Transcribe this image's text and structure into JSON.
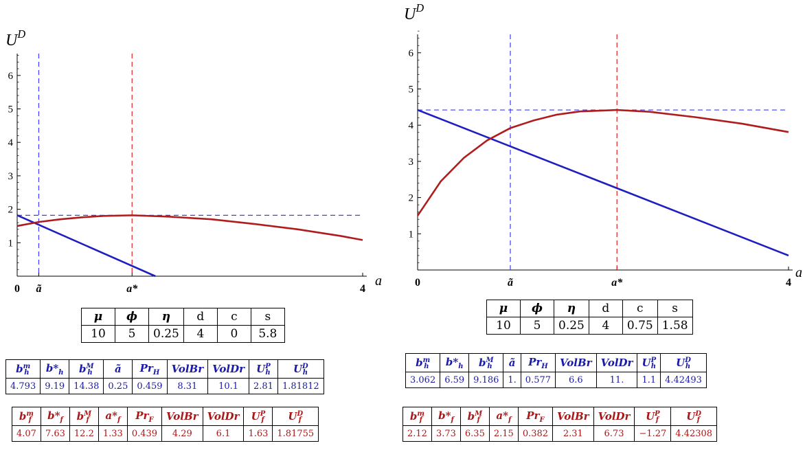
{
  "chart_data": [
    {
      "type": "line",
      "ylabel": "U^D",
      "xlabel": "a",
      "xlim": [
        0,
        4
      ],
      "ylim": [
        0,
        6.7
      ],
      "x_ticks": [
        "0",
        "ã",
        "a*",
        "4"
      ],
      "x_tick_values": [
        0,
        0.25,
        1.33,
        4
      ],
      "y_ticks": [
        1,
        2,
        3,
        4,
        5,
        6
      ],
      "series": [
        {
          "color": "#1f1fbf",
          "x": [
            0,
            1.6
          ],
          "y": [
            1.82,
            0
          ]
        },
        {
          "color": "#b01c1c",
          "x": [
            0,
            0.25,
            0.5,
            0.75,
            1.0,
            1.33,
            1.75,
            2.25,
            2.75,
            3.25,
            3.75,
            4.0
          ],
          "y": [
            1.5,
            1.62,
            1.7,
            1.76,
            1.8,
            1.82,
            1.78,
            1.7,
            1.56,
            1.4,
            1.2,
            1.08
          ]
        }
      ],
      "reference_lines": [
        {
          "orientation": "vertical",
          "x": 0.25,
          "color": "#3b3bff",
          "dash": true
        },
        {
          "orientation": "vertical",
          "x": 1.33,
          "color": "#e02020",
          "dash": true
        },
        {
          "orientation": "horizontal",
          "y": 1.82,
          "color": "#3b3bff",
          "dash": true
        }
      ]
    },
    {
      "type": "line",
      "ylabel": "U^D",
      "xlabel": "a",
      "xlim": [
        0,
        4
      ],
      "ylim": [
        0,
        6.7
      ],
      "x_ticks": [
        "0",
        "ã",
        "a*",
        "4"
      ],
      "x_tick_values": [
        0,
        1.0,
        2.15,
        4
      ],
      "y_ticks": [
        1,
        2,
        3,
        4,
        5,
        6
      ],
      "series": [
        {
          "color": "#1f1fbf",
          "x": [
            0,
            4.0
          ],
          "y": [
            4.42,
            0.4
          ]
        },
        {
          "color": "#b01c1c",
          "x": [
            0,
            0.25,
            0.5,
            0.75,
            1.0,
            1.25,
            1.5,
            1.75,
            2.15,
            2.5,
            3.0,
            3.5,
            4.0
          ],
          "y": [
            1.5,
            2.45,
            3.1,
            3.58,
            3.92,
            4.13,
            4.29,
            4.38,
            4.42,
            4.37,
            4.22,
            4.04,
            3.81
          ]
        }
      ],
      "reference_lines": [
        {
          "orientation": "vertical",
          "x": 1.0,
          "color": "#3b3bff",
          "dash": true
        },
        {
          "orientation": "vertical",
          "x": 2.15,
          "color": "#e02020",
          "dash": true
        },
        {
          "orientation": "horizontal",
          "y": 4.42,
          "color": "#3b3bff",
          "dash": true
        }
      ]
    }
  ],
  "tables": [
    {
      "params_header": [
        "μ",
        "ϕ",
        "η",
        "d",
        "c",
        "s"
      ],
      "params_values": [
        "10",
        "5",
        "0.25",
        "4",
        "0",
        "5.8"
      ],
      "home_header": [
        "b_h^m",
        "b*_h",
        "b_h^M",
        "ã",
        "Pr_H",
        "VolBr",
        "VolDr",
        "U_h^P",
        "U_h^D"
      ],
      "home_values": [
        "4.793",
        "9.19",
        "14.38",
        "0.25",
        "0.459",
        "8.31",
        "10.1",
        "2.81",
        "1.81812"
      ],
      "foreign_header": [
        "b_f^m",
        "b*_f",
        "b_f^M",
        "a*_f",
        "Pr_F",
        "VolBr",
        "VolDr",
        "U_f^P",
        "U_f^D"
      ],
      "foreign_values": [
        "4.07",
        "7.63",
        "12.2",
        "1.33",
        "0.439",
        "4.29",
        "6.1",
        "1.63",
        "1.81755"
      ]
    },
    {
      "params_header": [
        "μ",
        "ϕ",
        "η",
        "d",
        "c",
        "s"
      ],
      "params_values": [
        "10",
        "5",
        "0.25",
        "4",
        "0.75",
        "1.58"
      ],
      "home_header": [
        "b_h^m",
        "b*_h",
        "b_h^M",
        "ã",
        "Pr_H",
        "VolBr",
        "VolDr",
        "U_h^P",
        "U_h^D"
      ],
      "home_values": [
        "3.062",
        "6.59",
        "9.186",
        "1.",
        "0.577",
        "6.6",
        "11.",
        "1.1",
        "4.42493"
      ],
      "foreign_header": [
        "b_f^m",
        "b*_f",
        "b_f^M",
        "a*_f",
        "Pr_F",
        "VolBr",
        "VolDr",
        "U_f^P",
        "U_f^D"
      ],
      "foreign_values": [
        "2.12",
        "3.73",
        "6.35",
        "2.15",
        "0.382",
        "2.31",
        "6.73",
        "−1.27",
        "4.42308"
      ]
    }
  ]
}
